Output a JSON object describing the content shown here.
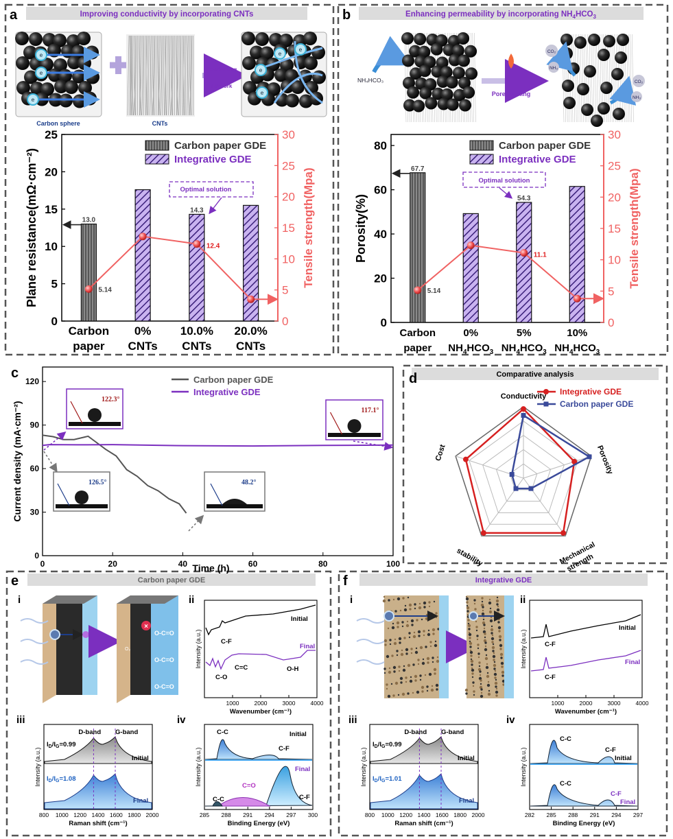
{
  "colors": {
    "integrative": "#7b2fbf",
    "carbon": "#555555",
    "tensile": "#f06262",
    "radar_red": "#d62020",
    "radar_blue": "#3a4a9a",
    "ir_final": "#7b2fbf"
  },
  "panel_a": {
    "letter": "a",
    "header": "Improving conductivity by incorporating CNTs",
    "schematic": {
      "electron": "e",
      "carbon_sphere": "Carbon sphere",
      "cnts": "CNTs",
      "conducting_1": "Conducting",
      "conducting_2": "network"
    },
    "legend": [
      "Carbon paper GDE",
      "Integrative GDE"
    ],
    "optimal": "Optimal solution",
    "chart_data": {
      "type": "bar",
      "categories": [
        [
          "Carbon",
          "paper"
        ],
        [
          "0%",
          "CNTs"
        ],
        [
          "10.0%",
          "CNTs"
        ],
        [
          "20.0%",
          "CNTs"
        ]
      ],
      "bars": [
        {
          "value": 13.0,
          "series": "carbon",
          "label": "13.0"
        },
        {
          "value": 17.6,
          "series": "integrative",
          "label": ""
        },
        {
          "value": 14.3,
          "series": "integrative",
          "label": "14.3"
        },
        {
          "value": 15.5,
          "series": "integrative",
          "label": ""
        }
      ],
      "ylabel": "Plane resistance(mΩ·cm⁻²)",
      "ylim": [
        0,
        25
      ],
      "yticks": [
        "0",
        "5",
        "10",
        "15",
        "20",
        "25"
      ],
      "y2label": "Tensile strength(Mpa)",
      "y2lim": [
        0,
        30
      ],
      "y2ticks": [
        "0",
        "5",
        "10",
        "15",
        "20",
        "25",
        "30"
      ],
      "tensile": [
        5.14,
        13.6,
        12.4,
        3.5
      ],
      "tensile_labels": [
        "5.14",
        "",
        "12.4",
        ""
      ]
    }
  },
  "panel_b": {
    "letter": "b",
    "header_pre": "Enhancing permeability by  incorporating NH",
    "header_sub1": "4",
    "header_mid": "HCO",
    "header_sub2": "3",
    "schematic": {
      "nh4hco3": "NH₄HCO₃",
      "pore": "Pore-forming",
      "co2": "CO₂",
      "nh3": "NH₃"
    },
    "legend": [
      "Carbon paper GDE",
      "Integrative GDE"
    ],
    "optimal": "Optimal solution",
    "chart_data": {
      "type": "bar",
      "categories": [
        [
          "Carbon",
          "paper"
        ],
        [
          "0%",
          "NH₄HCO₃"
        ],
        [
          "5%",
          "NH₄HCO₃"
        ],
        [
          "10%",
          "NH₄HCO₃"
        ]
      ],
      "bars": [
        {
          "value": 67.7,
          "series": "carbon",
          "label": "67.7"
        },
        {
          "value": 49.2,
          "series": "integrative",
          "label": ""
        },
        {
          "value": 54.3,
          "series": "integrative",
          "label": "54.3"
        },
        {
          "value": 61.5,
          "series": "integrative",
          "label": ""
        }
      ],
      "ylabel": "Porosity(%)",
      "ylim": [
        0,
        85
      ],
      "yticks": [
        "0",
        "20",
        "40",
        "60",
        "80"
      ],
      "y2label": "Tensile strength(Mpa)",
      "y2lim": [
        0,
        30
      ],
      "y2ticks": [
        "0",
        "5",
        "10",
        "15",
        "20",
        "25",
        "30"
      ],
      "tensile": [
        5.14,
        12.3,
        11.1,
        3.8
      ],
      "tensile_labels": [
        "5.14",
        "",
        "11.1",
        ""
      ]
    }
  },
  "panel_c": {
    "letter": "c",
    "chart_data": {
      "type": "line",
      "xlabel": "Time (h)",
      "ylabel": "Current density (mA·cm⁻²)",
      "xlim": [
        0,
        100
      ],
      "ylim": [
        0,
        130
      ],
      "xticks": [
        "0",
        "20",
        "40",
        "60",
        "80",
        "100"
      ],
      "yticks": [
        "0",
        "30",
        "60",
        "90",
        "120"
      ],
      "series": [
        {
          "name": "Carbon paper GDE",
          "x": [
            0,
            3,
            6,
            9,
            12,
            13,
            15,
            18,
            21,
            24,
            27,
            30,
            33,
            36,
            39,
            41
          ],
          "y": [
            83,
            82,
            80,
            80,
            81,
            83,
            78,
            74,
            68,
            60,
            54,
            49,
            44,
            40,
            35,
            30
          ]
        },
        {
          "name": "Integrative GDE",
          "x": [
            0,
            2,
            10,
            20,
            40,
            60,
            80,
            100
          ],
          "y": [
            76,
            76.5,
            76.4,
            76.5,
            75.8,
            75.6,
            76,
            76.2
          ]
        }
      ],
      "angles": [
        "122.3°",
        "117.1°",
        "126.5°",
        "48.2°"
      ]
    }
  },
  "panel_d": {
    "letter": "d",
    "header": "Comparative analysis",
    "chart_data": {
      "type": "radar",
      "axes": [
        "Conductivity",
        "Porosity",
        "Mechanical strength",
        "stability",
        "Cost"
      ],
      "axis_label_lines": [
        [
          "Conductivity"
        ],
        [
          "Porosity"
        ],
        [
          "Mechanical",
          "strength"
        ],
        [
          "stability"
        ],
        [
          "Cost"
        ]
      ],
      "levels": 5,
      "series": [
        {
          "name": "Integrative GDE",
          "values": [
            0.97,
            0.75,
            0.95,
            0.95,
            0.85
          ]
        },
        {
          "name": "Carbon paper GDE",
          "values": [
            0.88,
            0.97,
            0.18,
            0.18,
            0.17
          ]
        }
      ]
    }
  },
  "panel_e": {
    "letter": "e",
    "header": "Carbon paper GDE",
    "labels": {
      "i": "i",
      "ii": "ii",
      "iii": "iii",
      "iv": "iv",
      "o2": "O₂",
      "oco": "O-C=O",
      "x": "×"
    },
    "ftir": {
      "xlabel": "Wavenumber (cm⁻¹)",
      "ylabel": "Intensity (a.u.)",
      "xticks": [
        "1000",
        "2000",
        "3000",
        "4000"
      ],
      "initial": "Initial",
      "final": "Final",
      "cf": "C-F",
      "co": "C-O",
      "cc": "C=C",
      "oh": "O-H"
    },
    "raman": {
      "xlabel": "Raman shift (cm⁻¹)",
      "ylabel": "Intensity (a.u.)",
      "xticks": [
        "800",
        "1000",
        "1200",
        "1400",
        "1600",
        "1800",
        "2000"
      ],
      "dband": "D-band",
      "gband": "G-band",
      "ratio_initial": "I_D/I_G=0.99",
      "ratio_final": "I_D/I_G=1.08",
      "initial": "Initial",
      "final": "Final"
    },
    "xps": {
      "xlabel": "Binding Energy (eV)",
      "ylabel": "Intensity (a.u.)",
      "xticks": [
        "285",
        "288",
        "291",
        "294",
        "297",
        "300"
      ],
      "initial": "Initial",
      "final": "Final",
      "cc": "C-C",
      "cf": "C-F",
      "co": "C=O",
      "cc2": "C-C",
      "cf2": "C-F"
    }
  },
  "panel_f": {
    "letter": "f",
    "header": "Integrative GDE",
    "labels": {
      "i": "i",
      "ii": "ii",
      "iii": "iii",
      "iv": "iv"
    },
    "ftir": {
      "xlabel": "Wavenumber (cm⁻¹)",
      "ylabel": "Intensity (a.u.)",
      "xticks": [
        "1000",
        "2000",
        "3000",
        "4000"
      ],
      "initial": "Initial",
      "final": "Final",
      "cf": "C-F",
      "cf2": "C-F"
    },
    "raman": {
      "xlabel": "Raman shift (cm⁻¹)",
      "ylabel": "Intensity (a.u.)",
      "xticks": [
        "800",
        "1000",
        "1200",
        "1400",
        "1600",
        "1800",
        "2000"
      ],
      "dband": "D-band",
      "gband": "G-band",
      "ratio_initial": "I_D/I_G=0.99",
      "ratio_final": "I_D/I_G=1.01",
      "initial": "Initial",
      "final": "Final"
    },
    "xps": {
      "xlabel": "Binding Energy (eV)",
      "ylabel": "Intensity (a.u.)",
      "xticks": [
        "282",
        "285",
        "288",
        "291",
        "294",
        "297"
      ],
      "initial": "Initial",
      "final": "Final",
      "cc": "C-C",
      "cf": "C-F",
      "cc2": "C-C",
      "cf2": "C-F"
    }
  }
}
